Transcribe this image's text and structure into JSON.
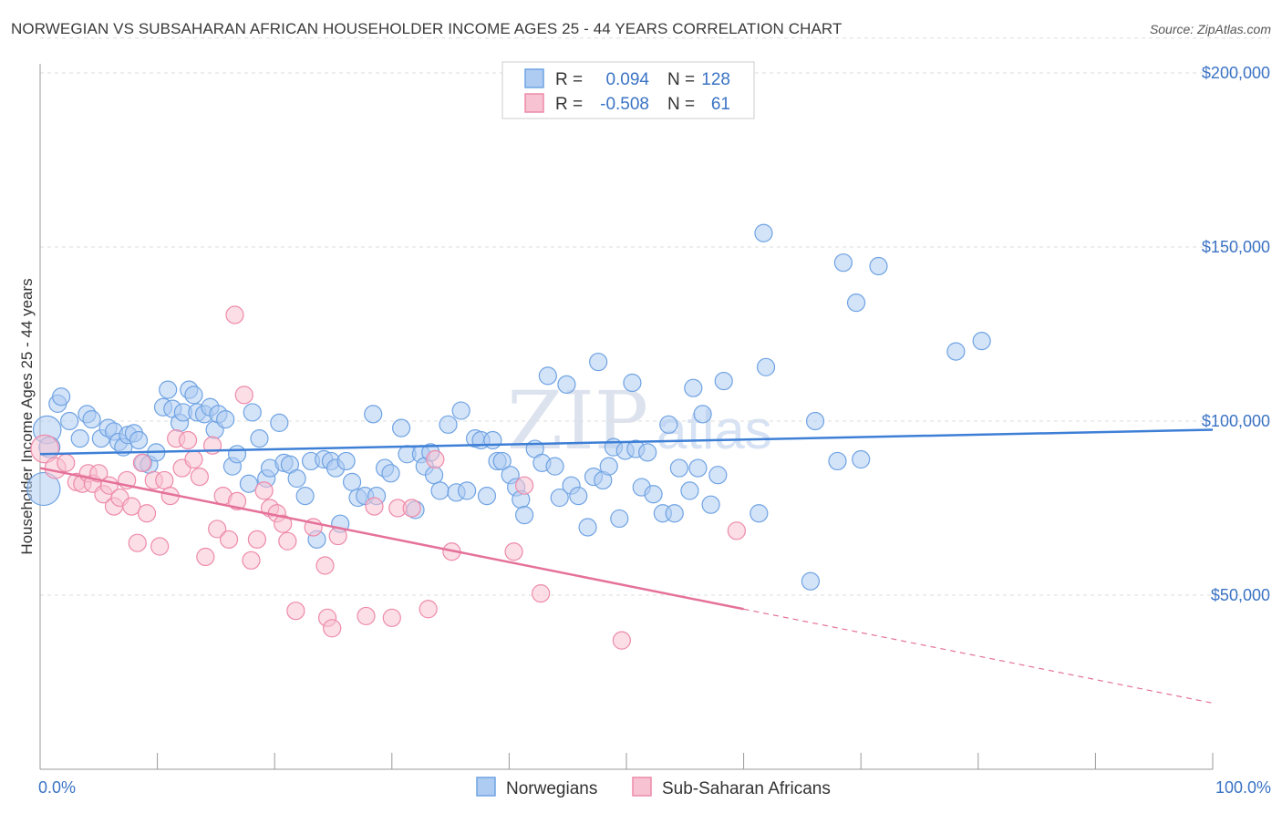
{
  "header": {
    "title": "NORWEGIAN VS SUBSAHARAN AFRICAN HOUSEHOLDER INCOME AGES 25 - 44 YEARS CORRELATION CHART",
    "source": "Source: ZipAtlas.com"
  },
  "legend": {
    "rows": [
      {
        "r_label": "R =",
        "r_value": "0.094",
        "n_label": "N =",
        "n_value": "128",
        "color": "#6fa3e3"
      },
      {
        "r_label": "R =",
        "r_value": "-0.508",
        "n_label": "N =",
        "n_value": "61",
        "color": "#f08cac"
      }
    ]
  },
  "watermark": {
    "zip": "ZIP",
    "atlas": "atlas"
  },
  "colors": {
    "blue_fill": "#aeccf2",
    "blue_stroke": "#6fa3e3",
    "blue_line": "#3e7fd6",
    "pink_fill": "#f7c2d2",
    "pink_stroke": "#ee8aaa",
    "pink_line": "#e5719a",
    "tick_text": "#3b73c4",
    "grid": "#dddddd"
  },
  "chart_data": {
    "type": "scatter",
    "title": "NORWEGIAN VS SUBSAHARAN AFRICAN HOUSEHOLDER INCOME AGES 25 - 44 YEARS CORRELATION CHART",
    "xlabel": "",
    "ylabel": "Householder Income Ages 25 - 44 years",
    "xlim": [
      0,
      100
    ],
    "ylim": [
      0,
      210000
    ],
    "x_tick_labels": [
      "0.0%",
      "100.0%"
    ],
    "y_ticks": [
      50000,
      100000,
      150000,
      200000
    ],
    "y_tick_labels": [
      "$50,000",
      "$100,000",
      "$150,000",
      "$200,000"
    ],
    "grid": true,
    "legend_position": "top-center",
    "series": [
      {
        "name": "Norwegians",
        "color": "#6fa3e3",
        "trend": {
          "x": [
            0,
            100
          ],
          "y": [
            90500,
            97500
          ],
          "dashed_from": null
        },
        "points": [
          [
            0.3,
            80500,
            1.9
          ],
          [
            0.6,
            97500,
            1.6
          ],
          [
            0.8,
            92500,
            1.2
          ],
          [
            1.5,
            105000,
            1.0
          ],
          [
            1.8,
            107000,
            1.0
          ],
          [
            2.5,
            100000,
            1.0
          ],
          [
            3.4,
            95000,
            1.0
          ],
          [
            4.0,
            102000,
            1.0
          ],
          [
            4.4,
            100500,
            1.0
          ],
          [
            5.2,
            95000,
            1.0
          ],
          [
            5.8,
            98000,
            1.0
          ],
          [
            6.3,
            97000,
            1.0
          ],
          [
            6.7,
            94000,
            1.0
          ],
          [
            7.1,
            92500,
            1.0
          ],
          [
            7.5,
            96000,
            1.0
          ],
          [
            8.0,
            96500,
            1.0
          ],
          [
            8.4,
            94500,
            1.0
          ],
          [
            8.8,
            88000,
            1.0
          ],
          [
            9.3,
            87500,
            1.0
          ],
          [
            9.9,
            91000,
            1.0
          ],
          [
            10.5,
            104000,
            1.0
          ],
          [
            10.9,
            109000,
            1.0
          ],
          [
            11.3,
            103500,
            1.0
          ],
          [
            11.9,
            99500,
            1.0
          ],
          [
            12.2,
            102500,
            1.0
          ],
          [
            12.7,
            109000,
            1.0
          ],
          [
            13.1,
            107500,
            1.0
          ],
          [
            13.4,
            102500,
            1.0
          ],
          [
            14.0,
            102000,
            1.0
          ],
          [
            14.5,
            104000,
            1.0
          ],
          [
            14.9,
            97500,
            1.0
          ],
          [
            15.2,
            102000,
            1.0
          ],
          [
            15.8,
            100500,
            1.0
          ],
          [
            16.4,
            87000,
            1.0
          ],
          [
            16.8,
            90500,
            1.0
          ],
          [
            17.8,
            82000,
            1.0
          ],
          [
            18.1,
            102500,
            1.0
          ],
          [
            18.7,
            95000,
            1.0
          ],
          [
            19.3,
            83500,
            1.0
          ],
          [
            19.6,
            86500,
            1.0
          ],
          [
            20.4,
            99500,
            1.0
          ],
          [
            20.8,
            88000,
            1.0
          ],
          [
            21.3,
            87500,
            1.0
          ],
          [
            21.9,
            83500,
            1.0
          ],
          [
            22.6,
            78500,
            1.0
          ],
          [
            23.1,
            88500,
            1.0
          ],
          [
            23.6,
            66000,
            1.0
          ],
          [
            24.2,
            89000,
            1.0
          ],
          [
            24.8,
            88500,
            1.0
          ],
          [
            25.2,
            86500,
            1.0
          ],
          [
            25.6,
            70500,
            1.0
          ],
          [
            26.1,
            88500,
            1.0
          ],
          [
            26.6,
            82500,
            1.0
          ],
          [
            27.1,
            78000,
            1.0
          ],
          [
            27.7,
            78500,
            1.0
          ],
          [
            28.4,
            102000,
            1.0
          ],
          [
            28.7,
            78500,
            1.0
          ],
          [
            29.4,
            86500,
            1.0
          ],
          [
            29.9,
            85000,
            1.0
          ],
          [
            30.8,
            98000,
            1.0
          ],
          [
            31.3,
            90500,
            1.0
          ],
          [
            32.0,
            74500,
            1.0
          ],
          [
            32.5,
            90500,
            1.0
          ],
          [
            32.8,
            87000,
            1.0
          ],
          [
            33.3,
            91000,
            1.0
          ],
          [
            33.6,
            84500,
            1.0
          ],
          [
            34.1,
            80000,
            1.0
          ],
          [
            34.8,
            99000,
            1.0
          ],
          [
            35.5,
            79500,
            1.0
          ],
          [
            35.9,
            103000,
            1.0
          ],
          [
            36.4,
            80000,
            1.0
          ],
          [
            37.1,
            95000,
            1.0
          ],
          [
            37.6,
            94500,
            1.0
          ],
          [
            38.1,
            78500,
            1.0
          ],
          [
            38.6,
            94500,
            1.0
          ],
          [
            39.0,
            88500,
            1.0
          ],
          [
            39.4,
            88500,
            1.0
          ],
          [
            40.1,
            84500,
            1.0
          ],
          [
            40.6,
            81000,
            1.0
          ],
          [
            41.0,
            77500,
            1.0
          ],
          [
            41.3,
            73000,
            1.0
          ],
          [
            42.2,
            92000,
            1.0
          ],
          [
            42.8,
            88000,
            1.0
          ],
          [
            43.3,
            113000,
            1.0
          ],
          [
            43.9,
            87000,
            1.0
          ],
          [
            44.3,
            78000,
            1.0
          ],
          [
            44.9,
            110500,
            1.0
          ],
          [
            45.3,
            81500,
            1.0
          ],
          [
            45.9,
            78500,
            1.0
          ],
          [
            46.7,
            69500,
            1.0
          ],
          [
            47.2,
            84000,
            1.0
          ],
          [
            47.6,
            117000,
            1.0
          ],
          [
            48.0,
            83000,
            1.0
          ],
          [
            48.5,
            87000,
            1.0
          ],
          [
            48.9,
            92500,
            1.0
          ],
          [
            49.4,
            72000,
            1.0
          ],
          [
            49.9,
            91500,
            1.0
          ],
          [
            50.5,
            111000,
            1.0
          ],
          [
            50.8,
            92000,
            1.0
          ],
          [
            51.3,
            81000,
            1.0
          ],
          [
            51.8,
            91000,
            1.0
          ],
          [
            52.3,
            79000,
            1.0
          ],
          [
            53.1,
            73500,
            1.0
          ],
          [
            53.6,
            99000,
            1.0
          ],
          [
            54.1,
            73500,
            1.0
          ],
          [
            54.5,
            86500,
            1.0
          ],
          [
            55.4,
            80000,
            1.0
          ],
          [
            55.7,
            109500,
            1.0
          ],
          [
            56.1,
            86500,
            1.0
          ],
          [
            56.5,
            102000,
            1.0
          ],
          [
            57.2,
            76000,
            1.0
          ],
          [
            57.8,
            84500,
            1.0
          ],
          [
            58.3,
            111500,
            1.0
          ],
          [
            61.3,
            73500,
            1.0
          ],
          [
            61.7,
            154000,
            1.0
          ],
          [
            61.9,
            115500,
            1.0
          ],
          [
            65.7,
            54000,
            1.0
          ],
          [
            66.1,
            100000,
            1.0
          ],
          [
            68.0,
            88500,
            1.0
          ],
          [
            68.5,
            145500,
            1.0
          ],
          [
            69.6,
            134000,
            1.0
          ],
          [
            70.0,
            89000,
            1.0
          ],
          [
            71.5,
            144500,
            1.0
          ],
          [
            78.1,
            120000,
            1.0
          ],
          [
            80.3,
            123000,
            1.0
          ]
        ]
      },
      {
        "name": "Sub-Saharan Africans",
        "color": "#ee8aaa",
        "trend": {
          "x": [
            0,
            100
          ],
          "y": [
            86500,
            19000
          ],
          "dashed_from": 60
        },
        "points": [
          [
            0.4,
            92000,
            1.6
          ],
          [
            1.3,
            86500,
            1.2
          ],
          [
            2.2,
            88000,
            1.0
          ],
          [
            3.1,
            82500,
            1.0
          ],
          [
            3.6,
            82000,
            1.0
          ],
          [
            4.1,
            85000,
            1.0
          ],
          [
            4.5,
            82000,
            1.0
          ],
          [
            5.0,
            85000,
            1.0
          ],
          [
            5.4,
            79000,
            1.0
          ],
          [
            5.9,
            81500,
            1.0
          ],
          [
            6.3,
            75500,
            1.0
          ],
          [
            6.8,
            78000,
            1.0
          ],
          [
            7.4,
            83000,
            1.0
          ],
          [
            7.8,
            75500,
            1.0
          ],
          [
            8.3,
            65000,
            1.0
          ],
          [
            8.7,
            88000,
            1.0
          ],
          [
            9.1,
            73500,
            1.0
          ],
          [
            9.7,
            83000,
            1.0
          ],
          [
            10.2,
            64000,
            1.0
          ],
          [
            10.6,
            83000,
            1.0
          ],
          [
            11.1,
            78500,
            1.0
          ],
          [
            11.6,
            95000,
            1.0
          ],
          [
            12.1,
            86500,
            1.0
          ],
          [
            12.6,
            94500,
            1.0
          ],
          [
            13.1,
            89000,
            1.0
          ],
          [
            13.6,
            84000,
            1.0
          ],
          [
            14.1,
            61000,
            1.0
          ],
          [
            14.7,
            93000,
            1.0
          ],
          [
            15.1,
            69000,
            1.0
          ],
          [
            15.6,
            78500,
            1.0
          ],
          [
            16.1,
            66000,
            1.0
          ],
          [
            16.6,
            130500,
            1.0
          ],
          [
            16.8,
            77000,
            1.0
          ],
          [
            17.4,
            107500,
            1.0
          ],
          [
            18.0,
            60000,
            1.0
          ],
          [
            18.5,
            66000,
            1.0
          ],
          [
            19.1,
            80000,
            1.0
          ],
          [
            19.6,
            75000,
            1.0
          ],
          [
            20.2,
            73500,
            1.0
          ],
          [
            20.7,
            70500,
            1.0
          ],
          [
            21.1,
            65500,
            1.0
          ],
          [
            21.8,
            45500,
            1.0
          ],
          [
            23.3,
            69500,
            1.0
          ],
          [
            24.3,
            58500,
            1.0
          ],
          [
            24.5,
            43500,
            1.0
          ],
          [
            24.9,
            40500,
            1.0
          ],
          [
            25.4,
            67000,
            1.0
          ],
          [
            27.8,
            44000,
            1.0
          ],
          [
            28.5,
            75500,
            1.0
          ],
          [
            30.0,
            43500,
            1.0
          ],
          [
            30.5,
            75000,
            1.0
          ],
          [
            31.7,
            75000,
            1.0
          ],
          [
            33.1,
            46000,
            1.0
          ],
          [
            33.7,
            89000,
            1.0
          ],
          [
            35.1,
            62500,
            1.0
          ],
          [
            40.4,
            62500,
            1.0
          ],
          [
            41.3,
            81500,
            1.0
          ],
          [
            42.7,
            50500,
            1.0
          ],
          [
            49.6,
            37000,
            1.0
          ],
          [
            59.4,
            68500,
            1.0
          ]
        ]
      }
    ]
  },
  "bottom_legend": [
    {
      "label": "Norwegians",
      "color": "#6fa3e3"
    },
    {
      "label": "Sub-Saharan Africans",
      "color": "#ee8aaa"
    }
  ]
}
